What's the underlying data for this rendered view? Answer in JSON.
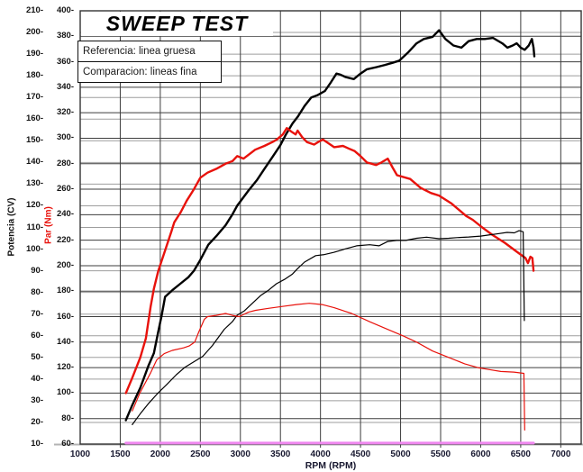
{
  "legend": {
    "line1": "Referencia: linea gruesa",
    "line2": "Comparacion: lineas fina"
  },
  "chart_data": {
    "type": "line",
    "title": "SWEEP TEST",
    "grid": true,
    "legend_position": "top-left",
    "x_axis": {
      "label": "RPM (RPM)",
      "min": 1000,
      "max": 7250,
      "tick_min": 1000,
      "tick_max": 7000,
      "tick_step": 500
    },
    "cv_axis": {
      "label": "Potencia (CV)",
      "min": 10,
      "max": 210,
      "tick_step": 10
    },
    "nm_axis": {
      "label": "Par (Nm)",
      "min": 60,
      "max": 400,
      "tick_step": 20
    },
    "series": [
      {
        "name": "Potencia referencia (linea gruesa)",
        "axis": "cv",
        "color": "#000000",
        "width": 2.4,
        "points": [
          [
            1570,
            21
          ],
          [
            1650,
            28
          ],
          [
            1750,
            36
          ],
          [
            1850,
            46
          ],
          [
            1920,
            52
          ],
          [
            1970,
            61
          ],
          [
            2020,
            70
          ],
          [
            2060,
            78
          ],
          [
            2150,
            81
          ],
          [
            2250,
            84
          ],
          [
            2350,
            87
          ],
          [
            2420,
            90
          ],
          [
            2500,
            95
          ],
          [
            2600,
            102
          ],
          [
            2700,
            106
          ],
          [
            2815,
            111
          ],
          [
            2900,
            116
          ],
          [
            2960,
            120
          ],
          [
            3100,
            127
          ],
          [
            3210,
            132
          ],
          [
            3300,
            137
          ],
          [
            3410,
            143
          ],
          [
            3500,
            148
          ],
          [
            3570,
            153
          ],
          [
            3650,
            158
          ],
          [
            3715,
            161
          ],
          [
            3800,
            166
          ],
          [
            3885,
            170
          ],
          [
            3960,
            171
          ],
          [
            4055,
            173
          ],
          [
            4130,
            177
          ],
          [
            4200,
            181
          ],
          [
            4250,
            180.5
          ],
          [
            4310,
            179.5
          ],
          [
            4415,
            178.5
          ],
          [
            4500,
            181
          ],
          [
            4580,
            183
          ],
          [
            4700,
            184
          ],
          [
            4805,
            185
          ],
          [
            4900,
            186
          ],
          [
            4985,
            187
          ],
          [
            5100,
            191
          ],
          [
            5200,
            195
          ],
          [
            5290,
            197
          ],
          [
            5400,
            198
          ],
          [
            5480,
            201
          ],
          [
            5560,
            197
          ],
          [
            5660,
            194
          ],
          [
            5760,
            193
          ],
          [
            5850,
            196
          ],
          [
            5950,
            197
          ],
          [
            6050,
            197
          ],
          [
            6155,
            197.5
          ],
          [
            6270,
            195
          ],
          [
            6335,
            193
          ],
          [
            6400,
            194
          ],
          [
            6450,
            195
          ],
          [
            6500,
            193
          ],
          [
            6550,
            192
          ],
          [
            6600,
            194
          ],
          [
            6640,
            197
          ],
          [
            6660,
            193
          ],
          [
            6670,
            189
          ]
        ]
      },
      {
        "name": "Par referencia (linea gruesa)",
        "axis": "nm",
        "color": "#e8120c",
        "width": 2.4,
        "points": [
          [
            1570,
            100
          ],
          [
            1650,
            112
          ],
          [
            1750,
            128
          ],
          [
            1820,
            143
          ],
          [
            1880,
            168
          ],
          [
            1920,
            182
          ],
          [
            1975,
            196
          ],
          [
            2065,
            213
          ],
          [
            2140,
            227
          ],
          [
            2175,
            234
          ],
          [
            2255,
            242
          ],
          [
            2330,
            251
          ],
          [
            2420,
            260
          ],
          [
            2500,
            269
          ],
          [
            2590,
            273
          ],
          [
            2700,
            276
          ],
          [
            2815,
            280
          ],
          [
            2900,
            282
          ],
          [
            2960,
            286
          ],
          [
            3040,
            284
          ],
          [
            3100,
            287
          ],
          [
            3185,
            291
          ],
          [
            3300,
            294
          ],
          [
            3400,
            297
          ],
          [
            3455,
            299
          ],
          [
            3530,
            303
          ],
          [
            3580,
            308
          ],
          [
            3640,
            305
          ],
          [
            3690,
            303
          ],
          [
            3715,
            306
          ],
          [
            3770,
            301
          ],
          [
            3830,
            297
          ],
          [
            3920,
            295
          ],
          [
            3970,
            297
          ],
          [
            4030,
            299
          ],
          [
            4100,
            296
          ],
          [
            4170,
            293
          ],
          [
            4280,
            294
          ],
          [
            4350,
            292
          ],
          [
            4425,
            290
          ],
          [
            4500,
            286
          ],
          [
            4580,
            281
          ],
          [
            4695,
            279
          ],
          [
            4760,
            281
          ],
          [
            4840,
            284
          ],
          [
            4900,
            277
          ],
          [
            4955,
            271
          ],
          [
            5120,
            268
          ],
          [
            5250,
            261
          ],
          [
            5380,
            257
          ],
          [
            5480,
            255
          ],
          [
            5630,
            249
          ],
          [
            5820,
            239
          ],
          [
            5900,
            236
          ],
          [
            6020,
            230
          ],
          [
            6150,
            224
          ],
          [
            6300,
            218
          ],
          [
            6450,
            211
          ],
          [
            6560,
            206
          ],
          [
            6590,
            202
          ],
          [
            6620,
            207
          ],
          [
            6645,
            206
          ],
          [
            6660,
            196
          ]
        ]
      },
      {
        "name": "Potencia comparacion (linea fina)",
        "axis": "cv",
        "color": "#000000",
        "width": 1.2,
        "points": [
          [
            1650,
            19
          ],
          [
            1750,
            24
          ],
          [
            1860,
            29
          ],
          [
            1970,
            33.5
          ],
          [
            2080,
            37.5
          ],
          [
            2200,
            42
          ],
          [
            2310,
            45.5
          ],
          [
            2420,
            48
          ],
          [
            2530,
            50.5
          ],
          [
            2650,
            55.5
          ],
          [
            2700,
            58
          ],
          [
            2800,
            63
          ],
          [
            2900,
            66.5
          ],
          [
            2960,
            69.5
          ],
          [
            3050,
            71.5
          ],
          [
            3150,
            75
          ],
          [
            3250,
            78.5
          ],
          [
            3350,
            81
          ],
          [
            3450,
            84
          ],
          [
            3550,
            86
          ],
          [
            3650,
            88.5
          ],
          [
            3715,
            91
          ],
          [
            3800,
            94
          ],
          [
            3940,
            97
          ],
          [
            4050,
            97.5
          ],
          [
            4165,
            98.5
          ],
          [
            4300,
            100
          ],
          [
            4450,
            101.5
          ],
          [
            4615,
            102
          ],
          [
            4730,
            101.5
          ],
          [
            4840,
            103.5
          ],
          [
            4950,
            104
          ],
          [
            5065,
            104
          ],
          [
            5200,
            105
          ],
          [
            5325,
            105.5
          ],
          [
            5480,
            104.8
          ],
          [
            5600,
            105
          ],
          [
            5700,
            105.3
          ],
          [
            5850,
            105.6
          ],
          [
            6000,
            106
          ],
          [
            6100,
            106.5
          ],
          [
            6200,
            107
          ],
          [
            6330,
            107.7
          ],
          [
            6420,
            107.5
          ],
          [
            6480,
            108.5
          ],
          [
            6530,
            108
          ],
          [
            6545,
            67
          ]
        ]
      },
      {
        "name": "Par comparacion (linea fina)",
        "axis": "nm",
        "color": "#e8120c",
        "width": 1.2,
        "points": [
          [
            1650,
            86
          ],
          [
            1745,
            100
          ],
          [
            1880,
            116
          ],
          [
            1955,
            126
          ],
          [
            2050,
            131
          ],
          [
            2150,
            133.5
          ],
          [
            2290,
            135.5
          ],
          [
            2360,
            137
          ],
          [
            2430,
            140
          ],
          [
            2480,
            148
          ],
          [
            2550,
            158
          ],
          [
            2590,
            160
          ],
          [
            2700,
            161
          ],
          [
            2815,
            162.5
          ],
          [
            2900,
            161
          ],
          [
            2985,
            160
          ],
          [
            3100,
            163.5
          ],
          [
            3190,
            165
          ],
          [
            3350,
            166.5
          ],
          [
            3525,
            168
          ],
          [
            3700,
            169.5
          ],
          [
            3860,
            170.5
          ],
          [
            4020,
            169.5
          ],
          [
            4170,
            167
          ],
          [
            4390,
            162.5
          ],
          [
            4615,
            156
          ],
          [
            4840,
            150
          ],
          [
            5030,
            145
          ],
          [
            5200,
            140
          ],
          [
            5400,
            133
          ],
          [
            5600,
            128
          ],
          [
            5800,
            123
          ],
          [
            5965,
            120
          ],
          [
            6100,
            118.5
          ],
          [
            6250,
            117
          ],
          [
            6415,
            116.5
          ],
          [
            6540,
            115.5
          ],
          [
            6550,
            71
          ]
        ]
      },
      {
        "name": "Marcador de barrido",
        "axis": "nm",
        "color": "#ef87ef",
        "width": 3,
        "points": [
          [
            1570,
            60.8
          ],
          [
            6660,
            60.8
          ]
        ]
      }
    ]
  }
}
